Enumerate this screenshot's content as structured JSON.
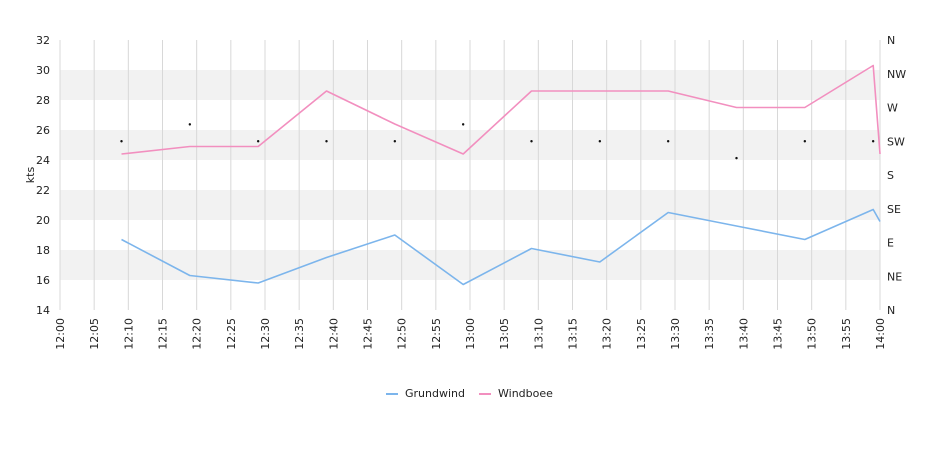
{
  "chart_data": {
    "type": "line",
    "ylabel": "kts",
    "ylim": [
      14,
      32
    ],
    "yticks": [
      "14",
      "16",
      "18",
      "20",
      "22",
      "24",
      "26",
      "28",
      "30",
      "32"
    ],
    "xlim": [
      "12:00",
      "14:00"
    ],
    "xticks": [
      "12:00",
      "12:05",
      "12:10",
      "12:15",
      "12:20",
      "12:25",
      "12:30",
      "12:35",
      "12:40",
      "12:45",
      "12:50",
      "12:55",
      "13:00",
      "13:05",
      "13:10",
      "13:15",
      "13:20",
      "13:25",
      "13:30",
      "13:35",
      "13:40",
      "13:45",
      "13:50",
      "13:55",
      "14:00"
    ],
    "y2ticks": [
      "N",
      "NE",
      "E",
      "SE",
      "S",
      "SW",
      "W",
      "NW",
      "N"
    ],
    "grid": true,
    "alternating_bands": true,
    "legend_position": "bottom-center",
    "series": [
      {
        "name": "Grundwind",
        "color": "#7cb5ec",
        "points": [
          [
            "12:09",
            18.7
          ],
          [
            "12:19",
            16.3
          ],
          [
            "12:29",
            15.8
          ],
          [
            "12:39",
            17.5
          ],
          [
            "12:49",
            19.0
          ],
          [
            "12:59",
            15.7
          ],
          [
            "13:09",
            18.1
          ],
          [
            "13:19",
            17.2
          ],
          [
            "13:29",
            20.5
          ],
          [
            "13:39",
            19.6
          ],
          [
            "13:49",
            18.7
          ],
          [
            "13:59",
            20.7
          ],
          [
            "14:00",
            19.9
          ]
        ]
      },
      {
        "name": "Windboee",
        "color": "#f28fbf",
        "points": [
          [
            "12:09",
            24.4
          ],
          [
            "12:19",
            24.9
          ],
          [
            "12:29",
            24.9
          ],
          [
            "12:39",
            28.6
          ],
          [
            "12:49",
            26.4
          ],
          [
            "12:59",
            24.4
          ],
          [
            "13:09",
            28.6
          ],
          [
            "13:19",
            28.6
          ],
          [
            "13:29",
            28.6
          ],
          [
            "13:39",
            27.5
          ],
          [
            "13:49",
            27.5
          ],
          [
            "13:59",
            30.3
          ],
          [
            "14:00",
            24.4
          ]
        ]
      }
    ],
    "direction_markers": [
      [
        "12:09",
        "SW"
      ],
      [
        "12:19",
        "WSW"
      ],
      [
        "12:29",
        "SW"
      ],
      [
        "12:39",
        "SW"
      ],
      [
        "12:49",
        "SW"
      ],
      [
        "12:59",
        "WSW"
      ],
      [
        "13:09",
        "SW"
      ],
      [
        "13:19",
        "SW"
      ],
      [
        "13:29",
        "SW"
      ],
      [
        "13:39",
        "SSW"
      ],
      [
        "13:49",
        "SW"
      ],
      [
        "13:59",
        "SW"
      ]
    ]
  }
}
